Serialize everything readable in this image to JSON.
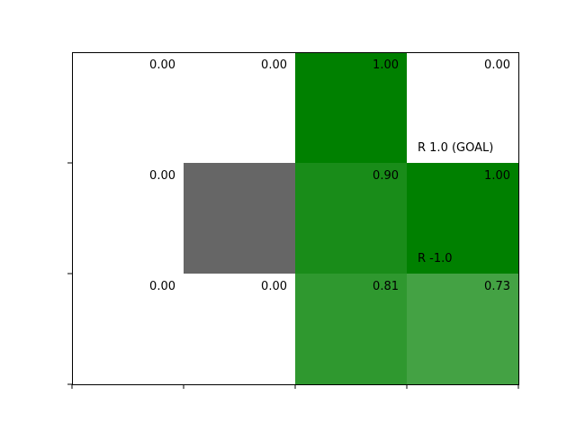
{
  "grid": {
    "rows": 3,
    "cols": 4,
    "frame_color": "#000000",
    "wall_color": "#666666",
    "cells": [
      {
        "row": 0,
        "col": 0,
        "value": "0.00",
        "fill": "#ffffff"
      },
      {
        "row": 0,
        "col": 1,
        "value": "0.00",
        "fill": "#ffffff"
      },
      {
        "row": 0,
        "col": 2,
        "value": "1.00",
        "fill": "#008000"
      },
      {
        "row": 0,
        "col": 3,
        "value": "0.00",
        "fill": "#ffffff",
        "reward": "R 1.0 (GOAL)"
      },
      {
        "row": 1,
        "col": 0,
        "value": "0.00",
        "fill": "#ffffff"
      },
      {
        "row": 1,
        "col": 1,
        "value": "",
        "fill": "#666666",
        "wall": true
      },
      {
        "row": 1,
        "col": 2,
        "value": "0.90",
        "fill": "#198c19"
      },
      {
        "row": 1,
        "col": 3,
        "value": "1.00",
        "fill": "#008000",
        "reward": "R -1.0"
      },
      {
        "row": 2,
        "col": 0,
        "value": "0.00",
        "fill": "#ffffff"
      },
      {
        "row": 2,
        "col": 1,
        "value": "0.00",
        "fill": "#ffffff"
      },
      {
        "row": 2,
        "col": 2,
        "value": "0.81",
        "fill": "#2f982f"
      },
      {
        "row": 2,
        "col": 3,
        "value": "0.73",
        "fill": "#44a244"
      }
    ]
  }
}
